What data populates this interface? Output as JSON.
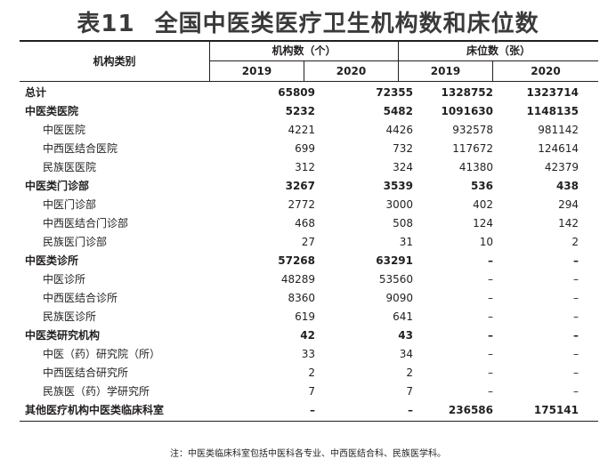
{
  "title": {
    "table_no": "表11",
    "text": "全国中医类医疗卫生机构数和床位数"
  },
  "header": {
    "category": "机构类别",
    "group1": "机构数（个）",
    "group2": "床位数（张）",
    "years": [
      "2019",
      "2020",
      "2019",
      "2020"
    ]
  },
  "rows": [
    {
      "name": "总计",
      "bold": true,
      "level": 0,
      "v": [
        "65809",
        "72355",
        "1328752",
        "1323714"
      ]
    },
    {
      "name": "中医类医院",
      "bold": true,
      "level": 0,
      "v": [
        "5232",
        "5482",
        "1091630",
        "1148135"
      ]
    },
    {
      "name": "中医医院",
      "bold": false,
      "level": 1,
      "v": [
        "4221",
        "4426",
        "932578",
        "981142"
      ]
    },
    {
      "name": "中西医结合医院",
      "bold": false,
      "level": 1,
      "v": [
        "699",
        "732",
        "117672",
        "124614"
      ]
    },
    {
      "name": "民族医医院",
      "bold": false,
      "level": 1,
      "v": [
        "312",
        "324",
        "41380",
        "42379"
      ]
    },
    {
      "name": "中医类门诊部",
      "bold": true,
      "level": 0,
      "v": [
        "3267",
        "3539",
        "536",
        "438"
      ]
    },
    {
      "name": "中医门诊部",
      "bold": false,
      "level": 1,
      "v": [
        "2772",
        "3000",
        "402",
        "294"
      ]
    },
    {
      "name": "中西医结合门诊部",
      "bold": false,
      "level": 1,
      "v": [
        "468",
        "508",
        "124",
        "142"
      ]
    },
    {
      "name": "民族医门诊部",
      "bold": false,
      "level": 1,
      "v": [
        "27",
        "31",
        "10",
        "2"
      ]
    },
    {
      "name": "中医类诊所",
      "bold": true,
      "level": 0,
      "v": [
        "57268",
        "63291",
        "–",
        "–"
      ]
    },
    {
      "name": "中医诊所",
      "bold": false,
      "level": 1,
      "v": [
        "48289",
        "53560",
        "–",
        "–"
      ]
    },
    {
      "name": "中西医结合诊所",
      "bold": false,
      "level": 1,
      "v": [
        "8360",
        "9090",
        "–",
        "–"
      ]
    },
    {
      "name": "民族医诊所",
      "bold": false,
      "level": 1,
      "v": [
        "619",
        "641",
        "–",
        "–"
      ]
    },
    {
      "name": "中医类研究机构",
      "bold": true,
      "level": 0,
      "v": [
        "42",
        "43",
        "–",
        "–"
      ]
    },
    {
      "name": "中医（药）研究院（所）",
      "bold": false,
      "level": 1,
      "v": [
        "33",
        "34",
        "–",
        "–"
      ]
    },
    {
      "name": "中西医结合研究所",
      "bold": false,
      "level": 1,
      "v": [
        "2",
        "2",
        "–",
        "–"
      ]
    },
    {
      "name": "民族医（药）学研究所",
      "bold": false,
      "level": 1,
      "v": [
        "7",
        "7",
        "–",
        "–"
      ]
    },
    {
      "name": "其他医疗机构中医类临床科室",
      "bold": true,
      "level": 0,
      "v": [
        "–",
        "–",
        "236586",
        "175141"
      ]
    }
  ],
  "note": "注：中医类临床科室包括中医科各专业、中西医结合科、民族医学科。"
}
